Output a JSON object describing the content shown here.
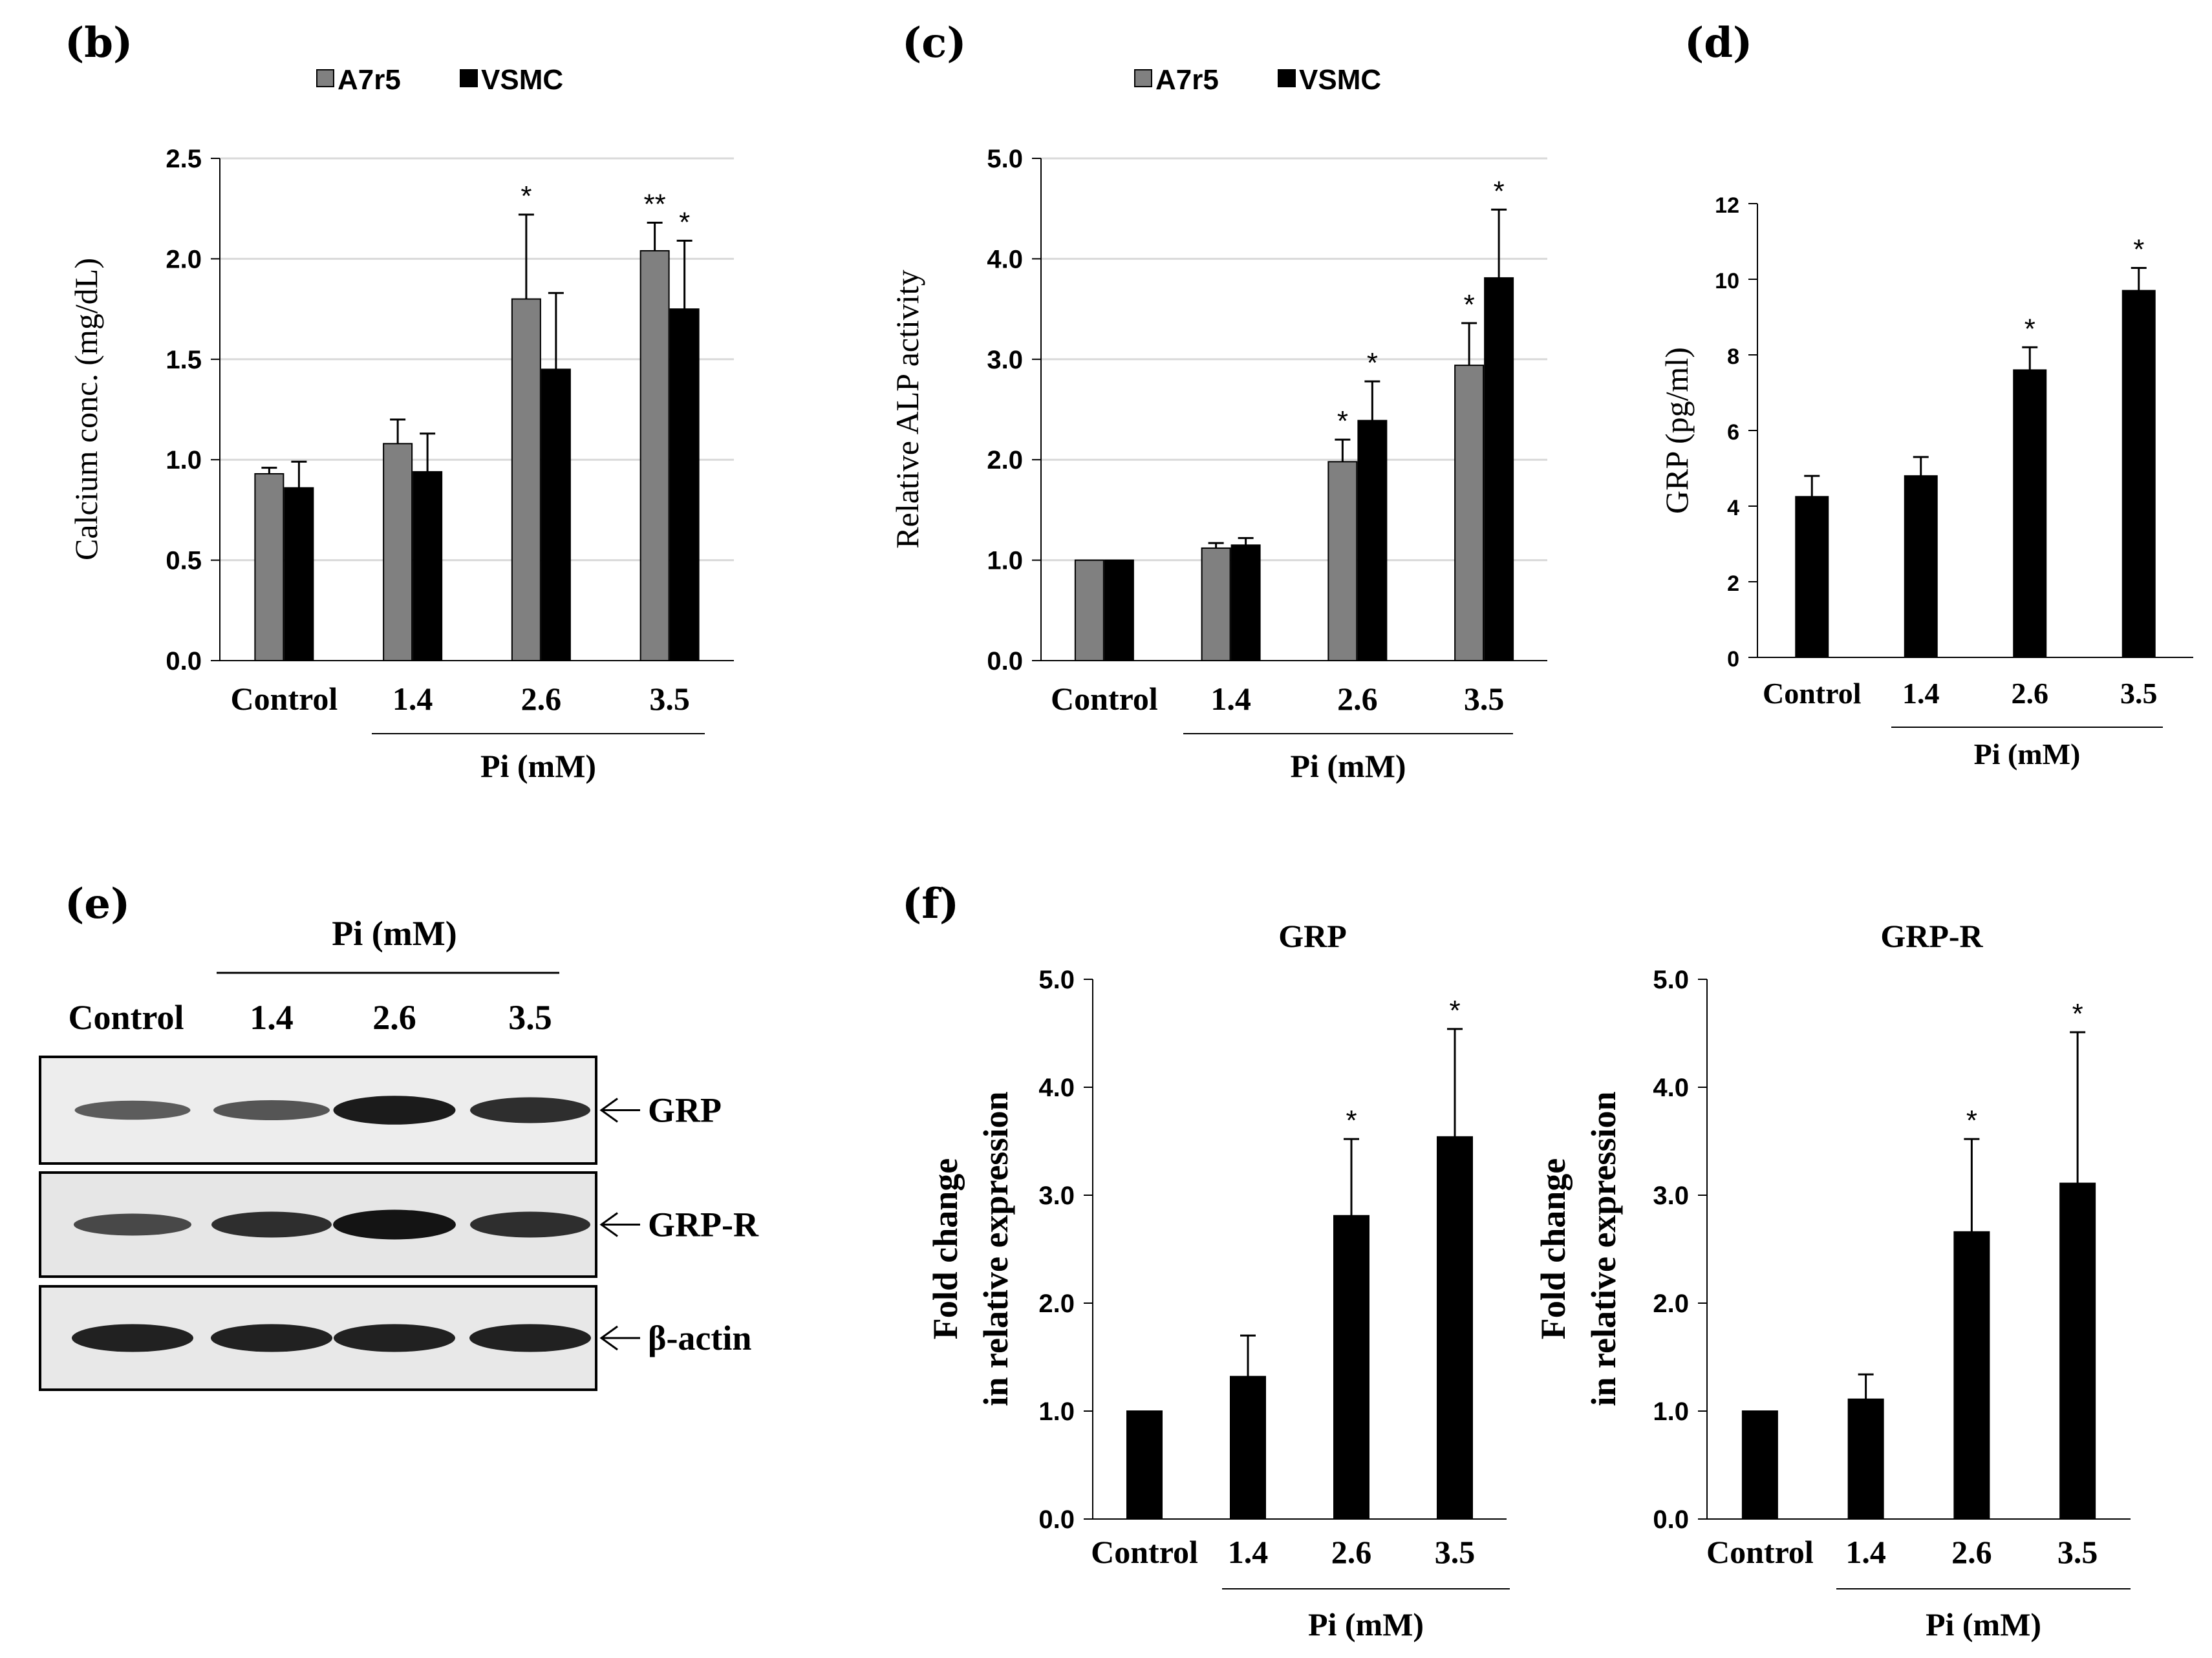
{
  "panels": {
    "b": "(b)",
    "c": "(c)",
    "d": "(d)",
    "e": "(e)",
    "f": "(f)"
  },
  "colors": {
    "gray": "#808080",
    "black": "#000000",
    "grid": "#d9d9d9",
    "band": "#1a1a1a"
  },
  "chart_data": [
    {
      "id": "b",
      "type": "bar",
      "title": "",
      "legend": [
        "A7r5",
        "VSMC"
      ],
      "categories": [
        "Control",
        "1.4",
        "2.6",
        "3.5"
      ],
      "group_label": "Pi (mM)",
      "ylabel": "Calcium conc. (mg/dL)",
      "ylim": [
        0,
        2.5
      ],
      "yticks": [
        "0.0",
        "0.5",
        "1.0",
        "1.5",
        "2.0",
        "2.5"
      ],
      "grid": true,
      "series": [
        {
          "name": "A7r5",
          "color": "#808080",
          "values": [
            0.93,
            1.08,
            1.8,
            2.04
          ],
          "errors": [
            0.03,
            0.12,
            0.42,
            0.14
          ],
          "stars": [
            "",
            "",
            "*",
            "**"
          ]
        },
        {
          "name": "VSMC",
          "color": "#000000",
          "values": [
            0.86,
            0.94,
            1.45,
            1.75
          ],
          "errors": [
            0.13,
            0.19,
            0.38,
            0.34
          ],
          "stars": [
            "",
            "",
            "",
            "*"
          ]
        }
      ]
    },
    {
      "id": "c",
      "type": "bar",
      "title": "",
      "legend": [
        "A7r5",
        "VSMC"
      ],
      "categories": [
        "Control",
        "1.4",
        "2.6",
        "3.5"
      ],
      "group_label": "Pi (mM)",
      "ylabel": "Relative ALP activity",
      "ylim": [
        0,
        5
      ],
      "yticks": [
        "0.0",
        "1.0",
        "2.0",
        "3.0",
        "4.0",
        "5.0"
      ],
      "grid": true,
      "series": [
        {
          "name": "A7r5",
          "color": "#808080",
          "values": [
            1.0,
            1.12,
            1.98,
            2.94
          ],
          "errors": [
            0,
            0.05,
            0.22,
            0.42
          ],
          "stars": [
            "",
            "",
            "*",
            "*"
          ]
        },
        {
          "name": "VSMC",
          "color": "#000000",
          "values": [
            1.0,
            1.15,
            2.39,
            3.81
          ],
          "errors": [
            0,
            0.07,
            0.39,
            0.68
          ],
          "stars": [
            "",
            "",
            "*",
            "*"
          ]
        }
      ]
    },
    {
      "id": "d",
      "type": "bar",
      "title": "",
      "categories": [
        "Control",
        "1.4",
        "2.6",
        "3.5"
      ],
      "group_label": "Pi (mM)",
      "ylabel": "GRP (pg/ml)",
      "ylim": [
        0,
        12
      ],
      "yticks": [
        "0",
        "2",
        "4",
        "6",
        "8",
        "10",
        "12"
      ],
      "grid": false,
      "series": [
        {
          "name": "GRP",
          "color": "#000000",
          "values": [
            4.25,
            4.8,
            7.6,
            9.7
          ],
          "errors": [
            0.55,
            0.5,
            0.6,
            0.6
          ],
          "stars": [
            "",
            "",
            "*",
            "*"
          ]
        }
      ]
    },
    {
      "id": "f1",
      "type": "bar",
      "title": "GRP",
      "categories": [
        "Control",
        "1.4",
        "2.6",
        "3.5"
      ],
      "group_label": "Pi (mM)",
      "ylabel": [
        "Fold change",
        "in relative expression"
      ],
      "ylim": [
        0,
        5
      ],
      "yticks": [
        "0.0",
        "1.0",
        "2.0",
        "3.0",
        "4.0",
        "5.0"
      ],
      "grid": false,
      "series": [
        {
          "name": "GRP",
          "color": "#000000",
          "values": [
            1.0,
            1.32,
            2.81,
            3.54
          ],
          "errors": [
            0,
            0.38,
            0.71,
            1.0
          ],
          "stars": [
            "",
            "",
            "*",
            "*"
          ]
        }
      ]
    },
    {
      "id": "f2",
      "type": "bar",
      "title": "GRP-R",
      "categories": [
        "Control",
        "1.4",
        "2.6",
        "3.5"
      ],
      "group_label": "Pi (mM)",
      "ylabel": [
        "Fold change",
        "in relative expression"
      ],
      "ylim": [
        0,
        5
      ],
      "yticks": [
        "0.0",
        "1.0",
        "2.0",
        "3.0",
        "4.0",
        "5.0"
      ],
      "grid": false,
      "series": [
        {
          "name": "GRP-R",
          "color": "#000000",
          "values": [
            1.0,
            1.11,
            2.66,
            3.11
          ],
          "errors": [
            0,
            0.23,
            0.86,
            1.4
          ],
          "stars": [
            "",
            "",
            "*",
            "*"
          ]
        }
      ]
    }
  ],
  "blot": {
    "group_label": "Pi (mM)",
    "lanes": [
      "Control",
      "1.4",
      "2.6",
      "3.5"
    ],
    "rows": [
      {
        "label": "GRP",
        "intensity": [
          0.45,
          0.5,
          0.95,
          0.8
        ]
      },
      {
        "label": "GRP-R",
        "intensity": [
          0.6,
          0.8,
          1.0,
          0.8
        ]
      },
      {
        "label": "β-actin",
        "intensity": [
          0.9,
          0.9,
          0.9,
          0.9
        ]
      }
    ]
  }
}
